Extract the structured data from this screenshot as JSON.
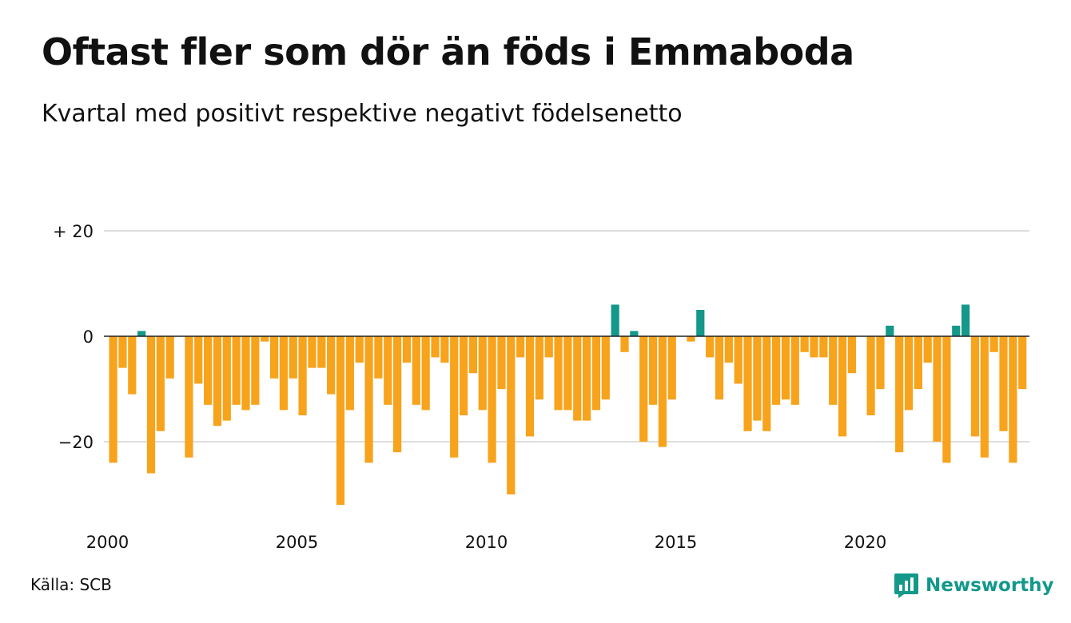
{
  "title": "Oftast fler som dör än föds i Emmaboda",
  "subtitle": "Kvartal med positivt respektive negativt födelsenetto",
  "source": "Källa: SCB",
  "brand": "Newsworthy",
  "brand_icon": "newsworthy-logo-icon",
  "colors": {
    "positive": "#13988a",
    "negative": "#f7a31c",
    "grid": "#dddddd",
    "brand": "#13988a"
  },
  "chart_data": {
    "type": "bar",
    "start_year": 2000,
    "end_year": 2024,
    "ylim": [
      -33,
      21
    ],
    "yticks": [
      {
        "value": 20,
        "label": "+ 20"
      },
      {
        "value": 0,
        "label": "0"
      },
      {
        "value": -20,
        "label": "−20"
      }
    ],
    "xticks": [
      {
        "year": 2000,
        "label": "2000"
      },
      {
        "year": 2005,
        "label": "2005"
      },
      {
        "year": 2010,
        "label": "2010"
      },
      {
        "year": 2015,
        "label": "2015"
      },
      {
        "year": 2020,
        "label": "2020"
      }
    ],
    "grid": true,
    "values": [
      -24,
      -6,
      -11,
      1,
      -26,
      -18,
      -8,
      0,
      -23,
      -9,
      -13,
      -17,
      -16,
      -13,
      -14,
      -13,
      -1,
      -8,
      -14,
      -8,
      -15,
      -6,
      -6,
      -11,
      -32,
      -14,
      -5,
      -24,
      -8,
      -13,
      -22,
      -5,
      -13,
      -14,
      -4,
      -5,
      -23,
      -15,
      -7,
      -14,
      -24,
      -10,
      -30,
      -4,
      -19,
      -12,
      -4,
      -14,
      -14,
      -16,
      -16,
      -14,
      -12,
      6,
      -3,
      1,
      -20,
      -13,
      -21,
      -12,
      0,
      -1,
      5,
      -4,
      -12,
      -5,
      -9,
      -18,
      -16,
      -18,
      -13,
      -12,
      -13,
      -3,
      -4,
      -4,
      -13,
      -19,
      -7,
      0,
      -15,
      -10,
      2,
      -22,
      -14,
      -10,
      -5,
      -20,
      -24,
      2,
      6,
      -19,
      -23,
      -3,
      -18,
      -24,
      -10
    ]
  }
}
